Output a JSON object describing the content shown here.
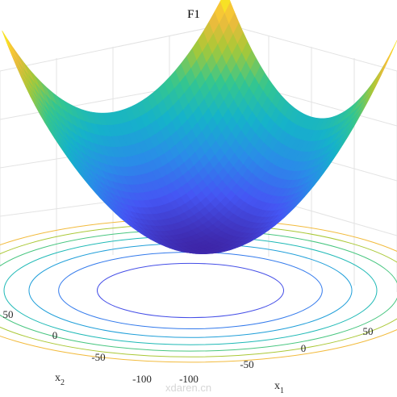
{
  "chart_data": {
    "type": "surface",
    "title": "F1",
    "function": "x1^2 + x2^2",
    "x1": {
      "label": "x",
      "subscript": "1",
      "range": [
        -100,
        100
      ],
      "ticks": [
        -100,
        -50,
        0,
        50
      ]
    },
    "x2": {
      "label": "x",
      "subscript": "2",
      "range": [
        -100,
        100
      ],
      "ticks": [
        -100,
        -50,
        0,
        50
      ]
    },
    "z_range": [
      0,
      20000
    ],
    "surface_samples": {
      "note_grid": "rows = x2, columns = x1",
      "x1": [
        -100,
        -50,
        0,
        50,
        100
      ],
      "x2": [
        -100,
        -50,
        0,
        50,
        100
      ],
      "z": [
        [
          20000,
          12500,
          10000,
          12500,
          20000
        ],
        [
          12500,
          5000,
          2500,
          5000,
          12500
        ],
        [
          10000,
          2500,
          0,
          2500,
          10000
        ],
        [
          12500,
          5000,
          2500,
          5000,
          12500
        ],
        [
          20000,
          12500,
          10000,
          12500,
          20000
        ]
      ]
    },
    "contour_projection": true,
    "colormap": "parula",
    "grid": true
  },
  "watermark": "xdaren.cn"
}
